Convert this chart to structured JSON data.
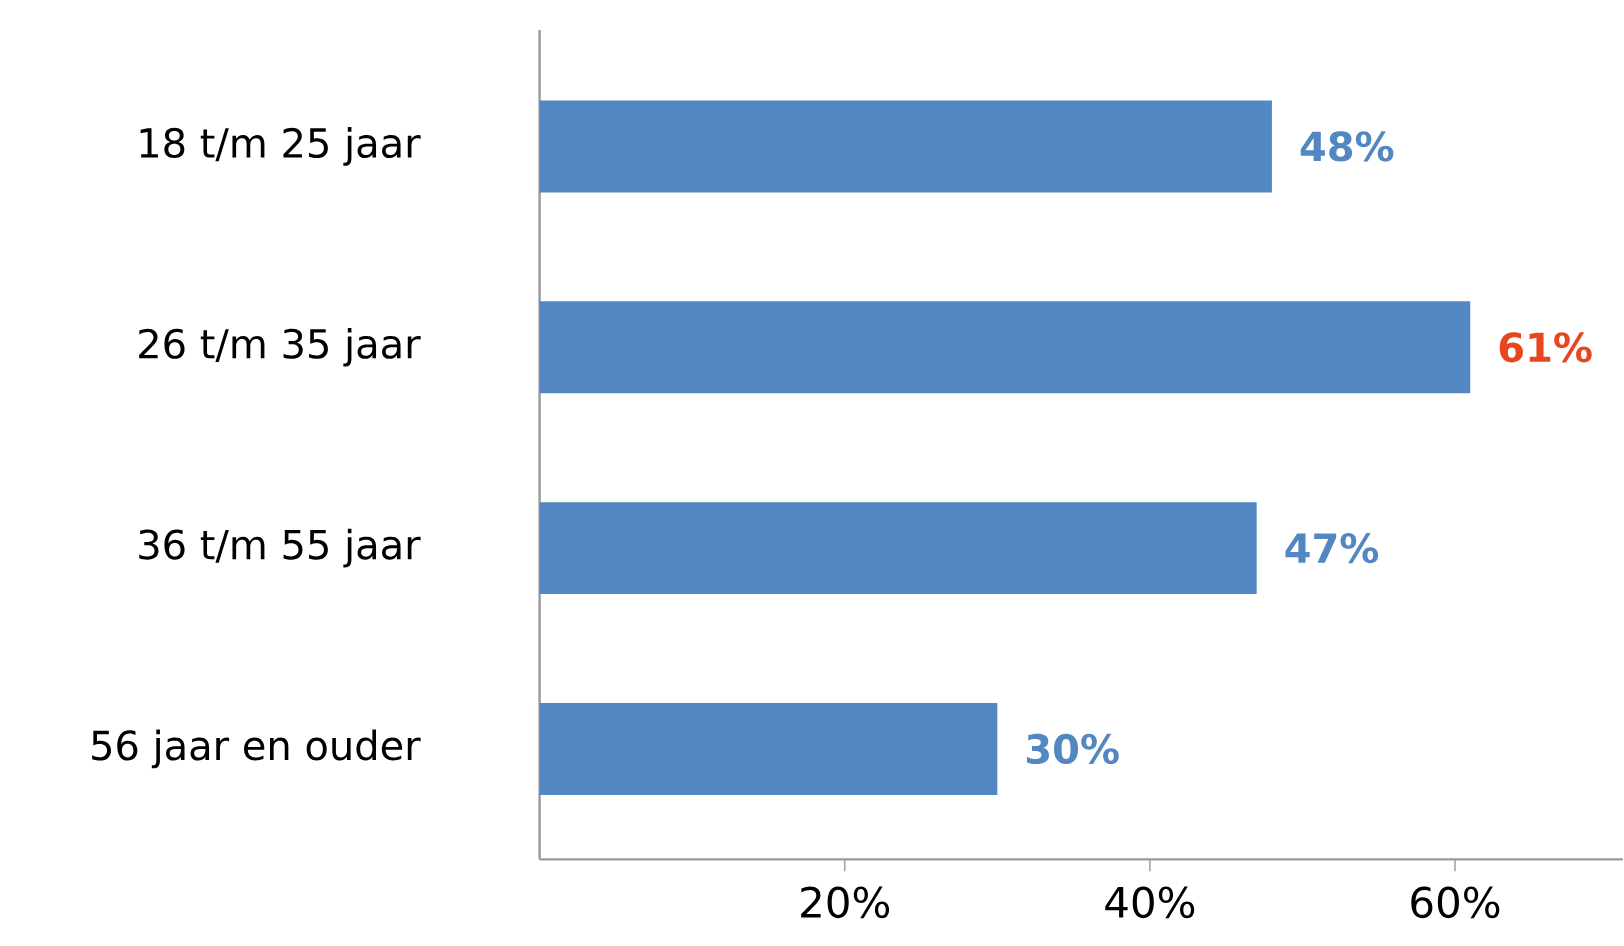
{
  "chart_data": {
    "type": "bar",
    "orientation": "horizontal",
    "categories": [
      "18 t/m 25 jaar",
      "26 t/m 35 jaar",
      "36 t/m 55 jaar",
      "56 jaar en ouder"
    ],
    "values": [
      48,
      61,
      47,
      30
    ],
    "value_labels": [
      "48%",
      "61%",
      "47%",
      "30%"
    ],
    "color": "#5287c1",
    "xlim": [
      0,
      71
    ],
    "xticks": [
      {
        "value": 20,
        "label": "20%"
      },
      {
        "value": 40,
        "label": "40%"
      },
      {
        "value": 60,
        "label": "60%"
      }
    ],
    "grid": false
  }
}
